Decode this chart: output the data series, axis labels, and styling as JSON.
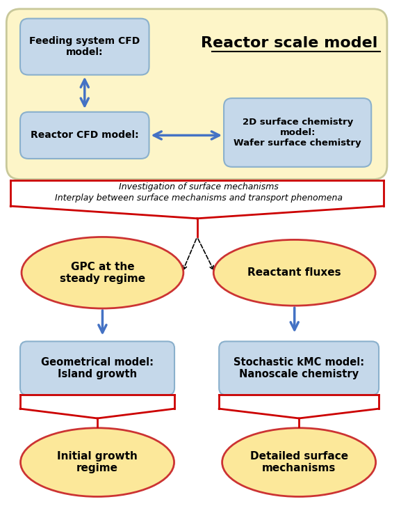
{
  "bg_color": "#ffffff",
  "reactor_scale_bg": "#fdf5c8",
  "reactor_scale_border": "#c8c89a",
  "blue_box_fill": "#c5d8ea",
  "blue_box_edge": "#8ab0cc",
  "yellow_ellipse_fill": "#fce89a",
  "yellow_ellipse_edge": "#cc3333",
  "red_color": "#cc0000",
  "arrow_blue": "#4472c4",
  "text_color": "#000000",
  "title": "Reactor scale model",
  "box1_text": "Feeding system CFD\nmodel:",
  "box2_text": "Reactor CFD model:",
  "box3_text": "2D surface chemistry\nmodel:\nWafer surface chemistry",
  "text_investigation": "Investigation of surface mechanisms",
  "text_interplay": "Interplay between surface mechanisms and transport phenomena",
  "ellipse1_text": "GPC at the\nsteady regime",
  "ellipse2_text": "Reactant fluxes",
  "rect1_text": "Geometrical model:\nIsland growth",
  "rect2_text": "Stochastic kMC model:\nNanoscale chemistry",
  "ellipse3_text": "Initial growth\nregime",
  "ellipse4_text": "Detailed surface\nmechanisms"
}
